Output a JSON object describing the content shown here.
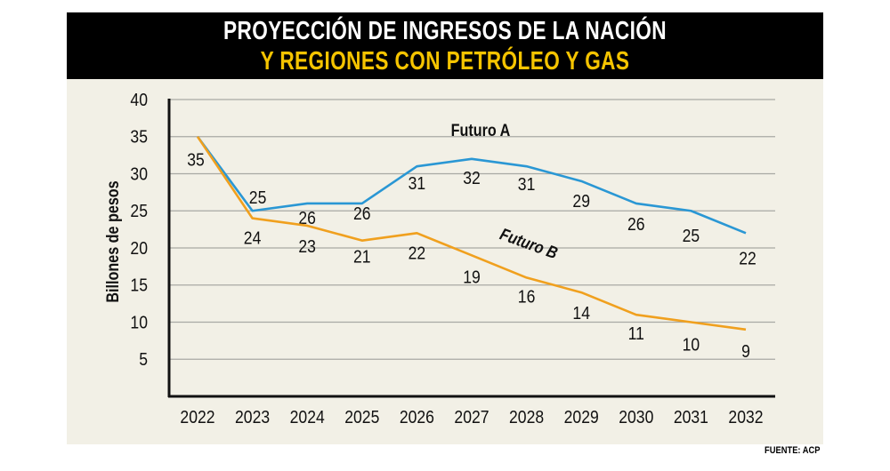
{
  "header": {
    "title_line1": "PROYECCIÓN DE INGRESOS DE LA NACIÓN",
    "title_line2": "Y REGIONES CON PETRÓLEO Y GAS"
  },
  "footer": {
    "source": "FUENTE: ACP"
  },
  "chart_data": {
    "type": "line",
    "title": "PROYECCIÓN DE INGRESOS DE LA NACIÓN Y REGIONES CON PETRÓLEO Y GAS",
    "xlabel": "",
    "ylabel": "Billones de pesos",
    "ylim": [
      0,
      40
    ],
    "yticks": [
      5,
      10,
      15,
      20,
      25,
      30,
      35,
      40
    ],
    "grid": true,
    "categories": [
      "2022",
      "2023",
      "2024",
      "2025",
      "2026",
      "2027",
      "2028",
      "2029",
      "2030",
      "2031",
      "2032"
    ],
    "series": [
      {
        "name": "Futuro A",
        "color": "#2a97d4",
        "values": [
          35,
          25,
          26,
          26,
          31,
          32,
          31,
          29,
          26,
          25,
          22
        ]
      },
      {
        "name": "Futuro B",
        "color": "#f0a01e",
        "values": [
          35,
          24,
          23,
          21,
          22,
          19,
          16,
          14,
          11,
          10,
          9
        ]
      }
    ]
  }
}
